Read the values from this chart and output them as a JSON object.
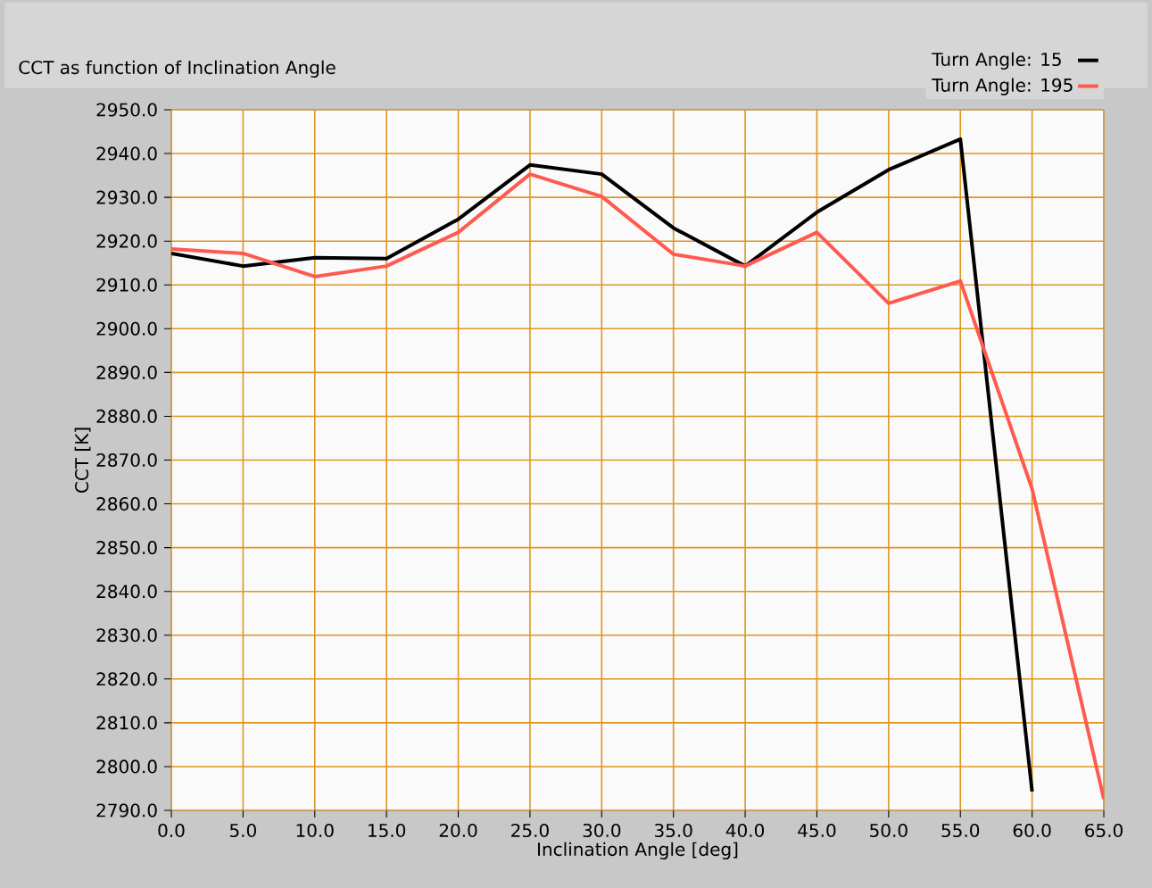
{
  "chart_data": {
    "type": "line",
    "title": "CCT as function of Inclination Angle",
    "xlabel": "Inclination Angle [deg]",
    "ylabel": "CCT [K]",
    "x": [
      0,
      5,
      10,
      15,
      20,
      25,
      30,
      35,
      40,
      45,
      50,
      55,
      60,
      65
    ],
    "series": [
      {
        "name": "Turn Angle:   15",
        "color": "#000000",
        "values": [
          2917.2,
          2914.3,
          2916.2,
          2916.0,
          2925.0,
          2937.4,
          2935.3,
          2923.0,
          2914.3,
          2926.6,
          2936.3,
          2943.3,
          2794.3,
          null
        ]
      },
      {
        "name": "Turn Angle:   195",
        "color": "#ff5a50",
        "values": [
          2918.2,
          2917.2,
          2911.9,
          2914.3,
          2922.0,
          2935.3,
          2930.2,
          2917.0,
          2914.3,
          2922.0,
          2905.8,
          2910.9,
          2863.4,
          2792.6
        ]
      }
    ],
    "xlim": [
      0,
      65
    ],
    "ylim": [
      2790,
      2950
    ],
    "xticks": [
      {
        "value": 0,
        "label": "0.0"
      },
      {
        "value": 5,
        "label": "5.0"
      },
      {
        "value": 10,
        "label": "10.0"
      },
      {
        "value": 15,
        "label": "15.0"
      },
      {
        "value": 20,
        "label": "20.0"
      },
      {
        "value": 25,
        "label": "25.0"
      },
      {
        "value": 30,
        "label": "30.0"
      },
      {
        "value": 35,
        "label": "35.0"
      },
      {
        "value": 40,
        "label": "40.0"
      },
      {
        "value": 45,
        "label": "45.0"
      },
      {
        "value": 50,
        "label": "50.0"
      },
      {
        "value": 55,
        "label": "55.0"
      },
      {
        "value": 60,
        "label": "60.0"
      },
      {
        "value": 65,
        "label": "65.0"
      }
    ],
    "yticks": [
      {
        "value": 2790,
        "label": "2790.0"
      },
      {
        "value": 2800,
        "label": "2800.0"
      },
      {
        "value": 2810,
        "label": "2810.0"
      },
      {
        "value": 2820,
        "label": "2820.0"
      },
      {
        "value": 2830,
        "label": "2830.0"
      },
      {
        "value": 2840,
        "label": "2840.0"
      },
      {
        "value": 2850,
        "label": "2850.0"
      },
      {
        "value": 2860,
        "label": "2860.0"
      },
      {
        "value": 2870,
        "label": "2870.0"
      },
      {
        "value": 2880,
        "label": "2880.0"
      },
      {
        "value": 2890,
        "label": "2890.0"
      },
      {
        "value": 2900,
        "label": "2900.0"
      },
      {
        "value": 2910,
        "label": "2910.0"
      },
      {
        "value": 2920,
        "label": "2920.0"
      },
      {
        "value": 2930,
        "label": "2930.0"
      },
      {
        "value": 2940,
        "label": "2940.0"
      },
      {
        "value": 2950,
        "label": "2950.0"
      }
    ],
    "grid": true,
    "legend": "top right",
    "line_style": "solid",
    "marker": "none"
  }
}
